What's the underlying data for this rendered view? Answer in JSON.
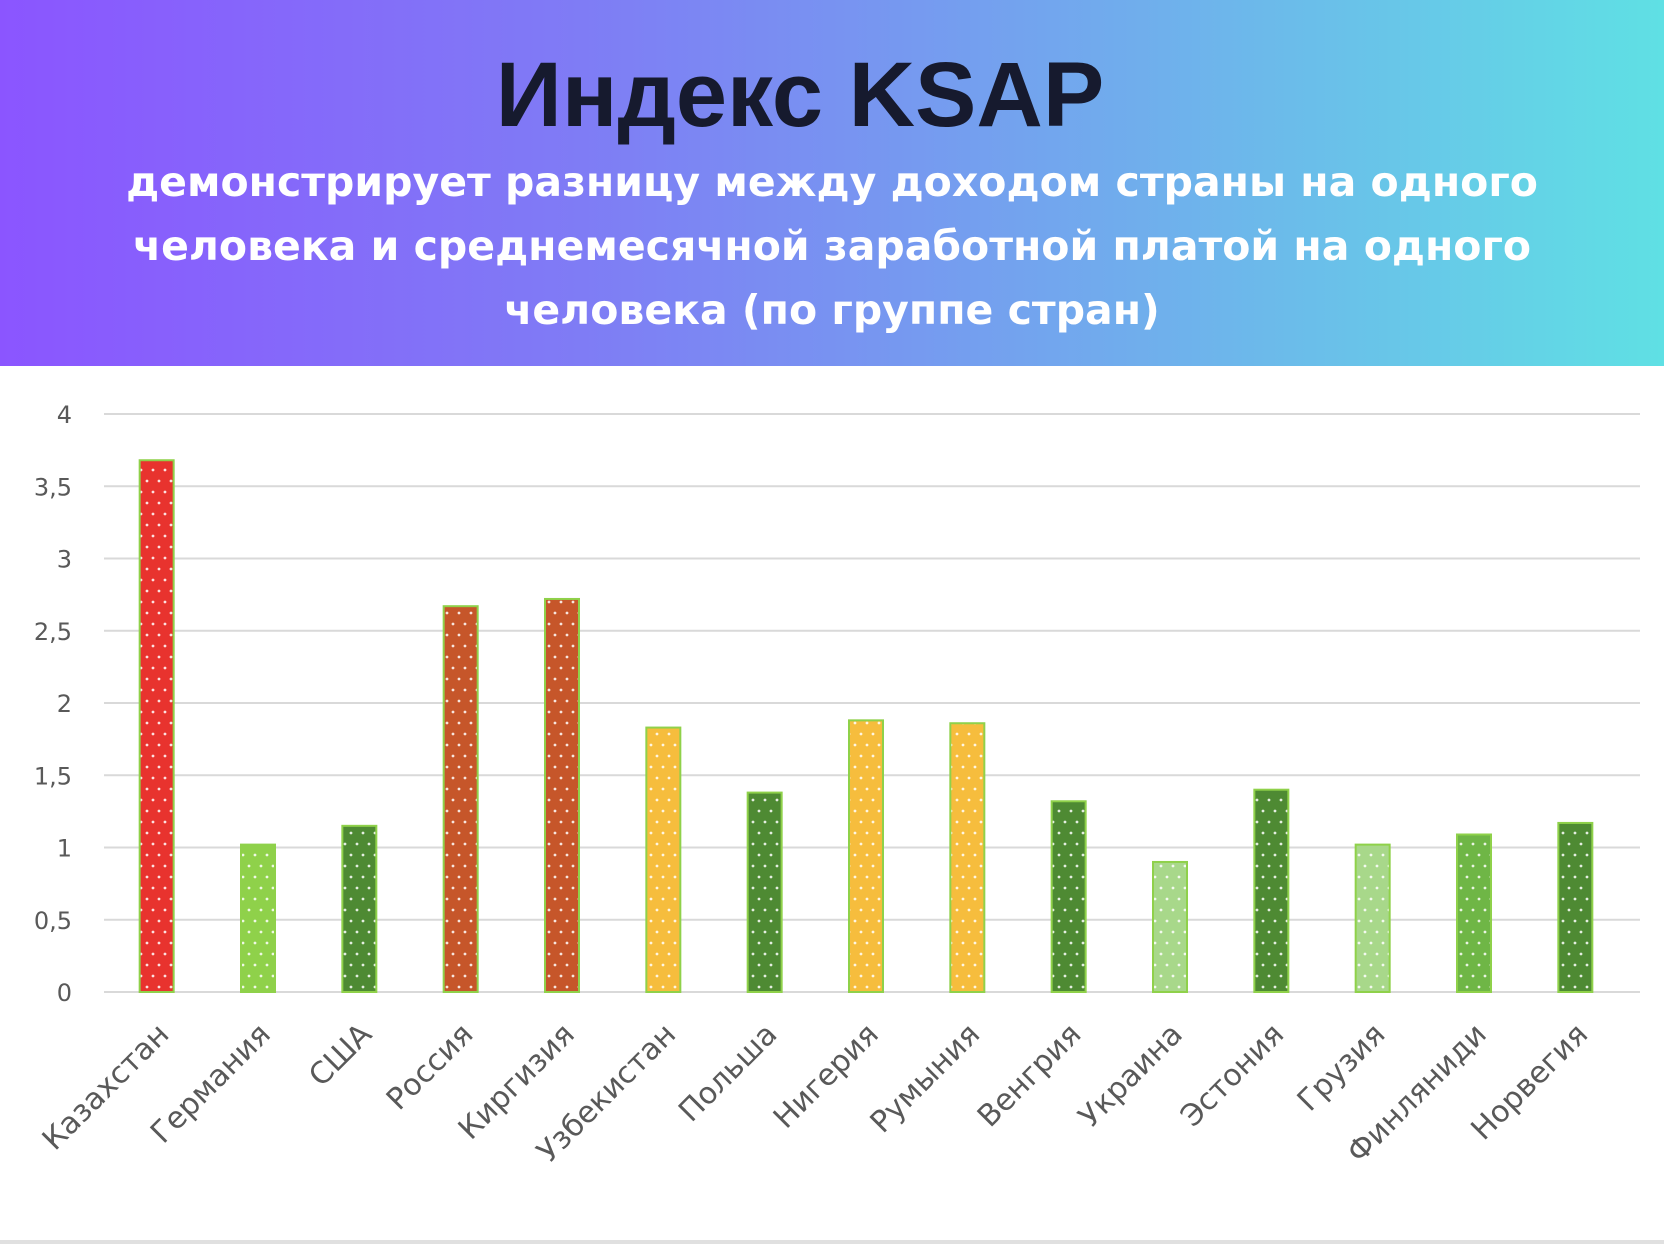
{
  "header": {
    "title": "Индекс KSAP",
    "subtitle": "демонстрирует разницу  между доходом страны на одного\nчеловека и среднемесячной заработной платой на одного\nчеловека (по группе стран)"
  },
  "colors": {
    "red": "#e8332e",
    "light_green": "#8fd14a",
    "dark_green": "#4e8a33",
    "rust": "#c6562a",
    "yellow": "#f6bd3d",
    "pale_green": "#a8d88a",
    "medium_green": "#6fb646",
    "gridline": "#d9d9d9",
    "tick_text": "#595959"
  },
  "chart_data": {
    "type": "bar",
    "categories": [
      "Казахстан",
      "Германия",
      "США",
      "Россия",
      "Киргизия",
      "Узбекистан",
      "Польша",
      "Нигерия",
      "Румыния",
      "Венгрия",
      "Украина",
      "Эстония",
      "Грузия",
      "Финляниди",
      "Норвегия"
    ],
    "values": [
      3.68,
      1.02,
      1.15,
      2.67,
      2.72,
      1.83,
      1.38,
      1.88,
      1.86,
      1.32,
      0.9,
      1.4,
      1.02,
      1.09,
      1.17
    ],
    "bar_colors": [
      "red",
      "light_green",
      "dark_green",
      "rust",
      "rust",
      "yellow",
      "dark_green",
      "yellow",
      "yellow",
      "dark_green",
      "pale_green",
      "dark_green",
      "pale_green",
      "medium_green",
      "dark_green"
    ],
    "yticks": [
      "0",
      "0,5",
      "1",
      "1,5",
      "2",
      "2,5",
      "3",
      "3,5",
      "4"
    ],
    "ylim": [
      0,
      4
    ],
    "grid": true,
    "legend": "none"
  }
}
